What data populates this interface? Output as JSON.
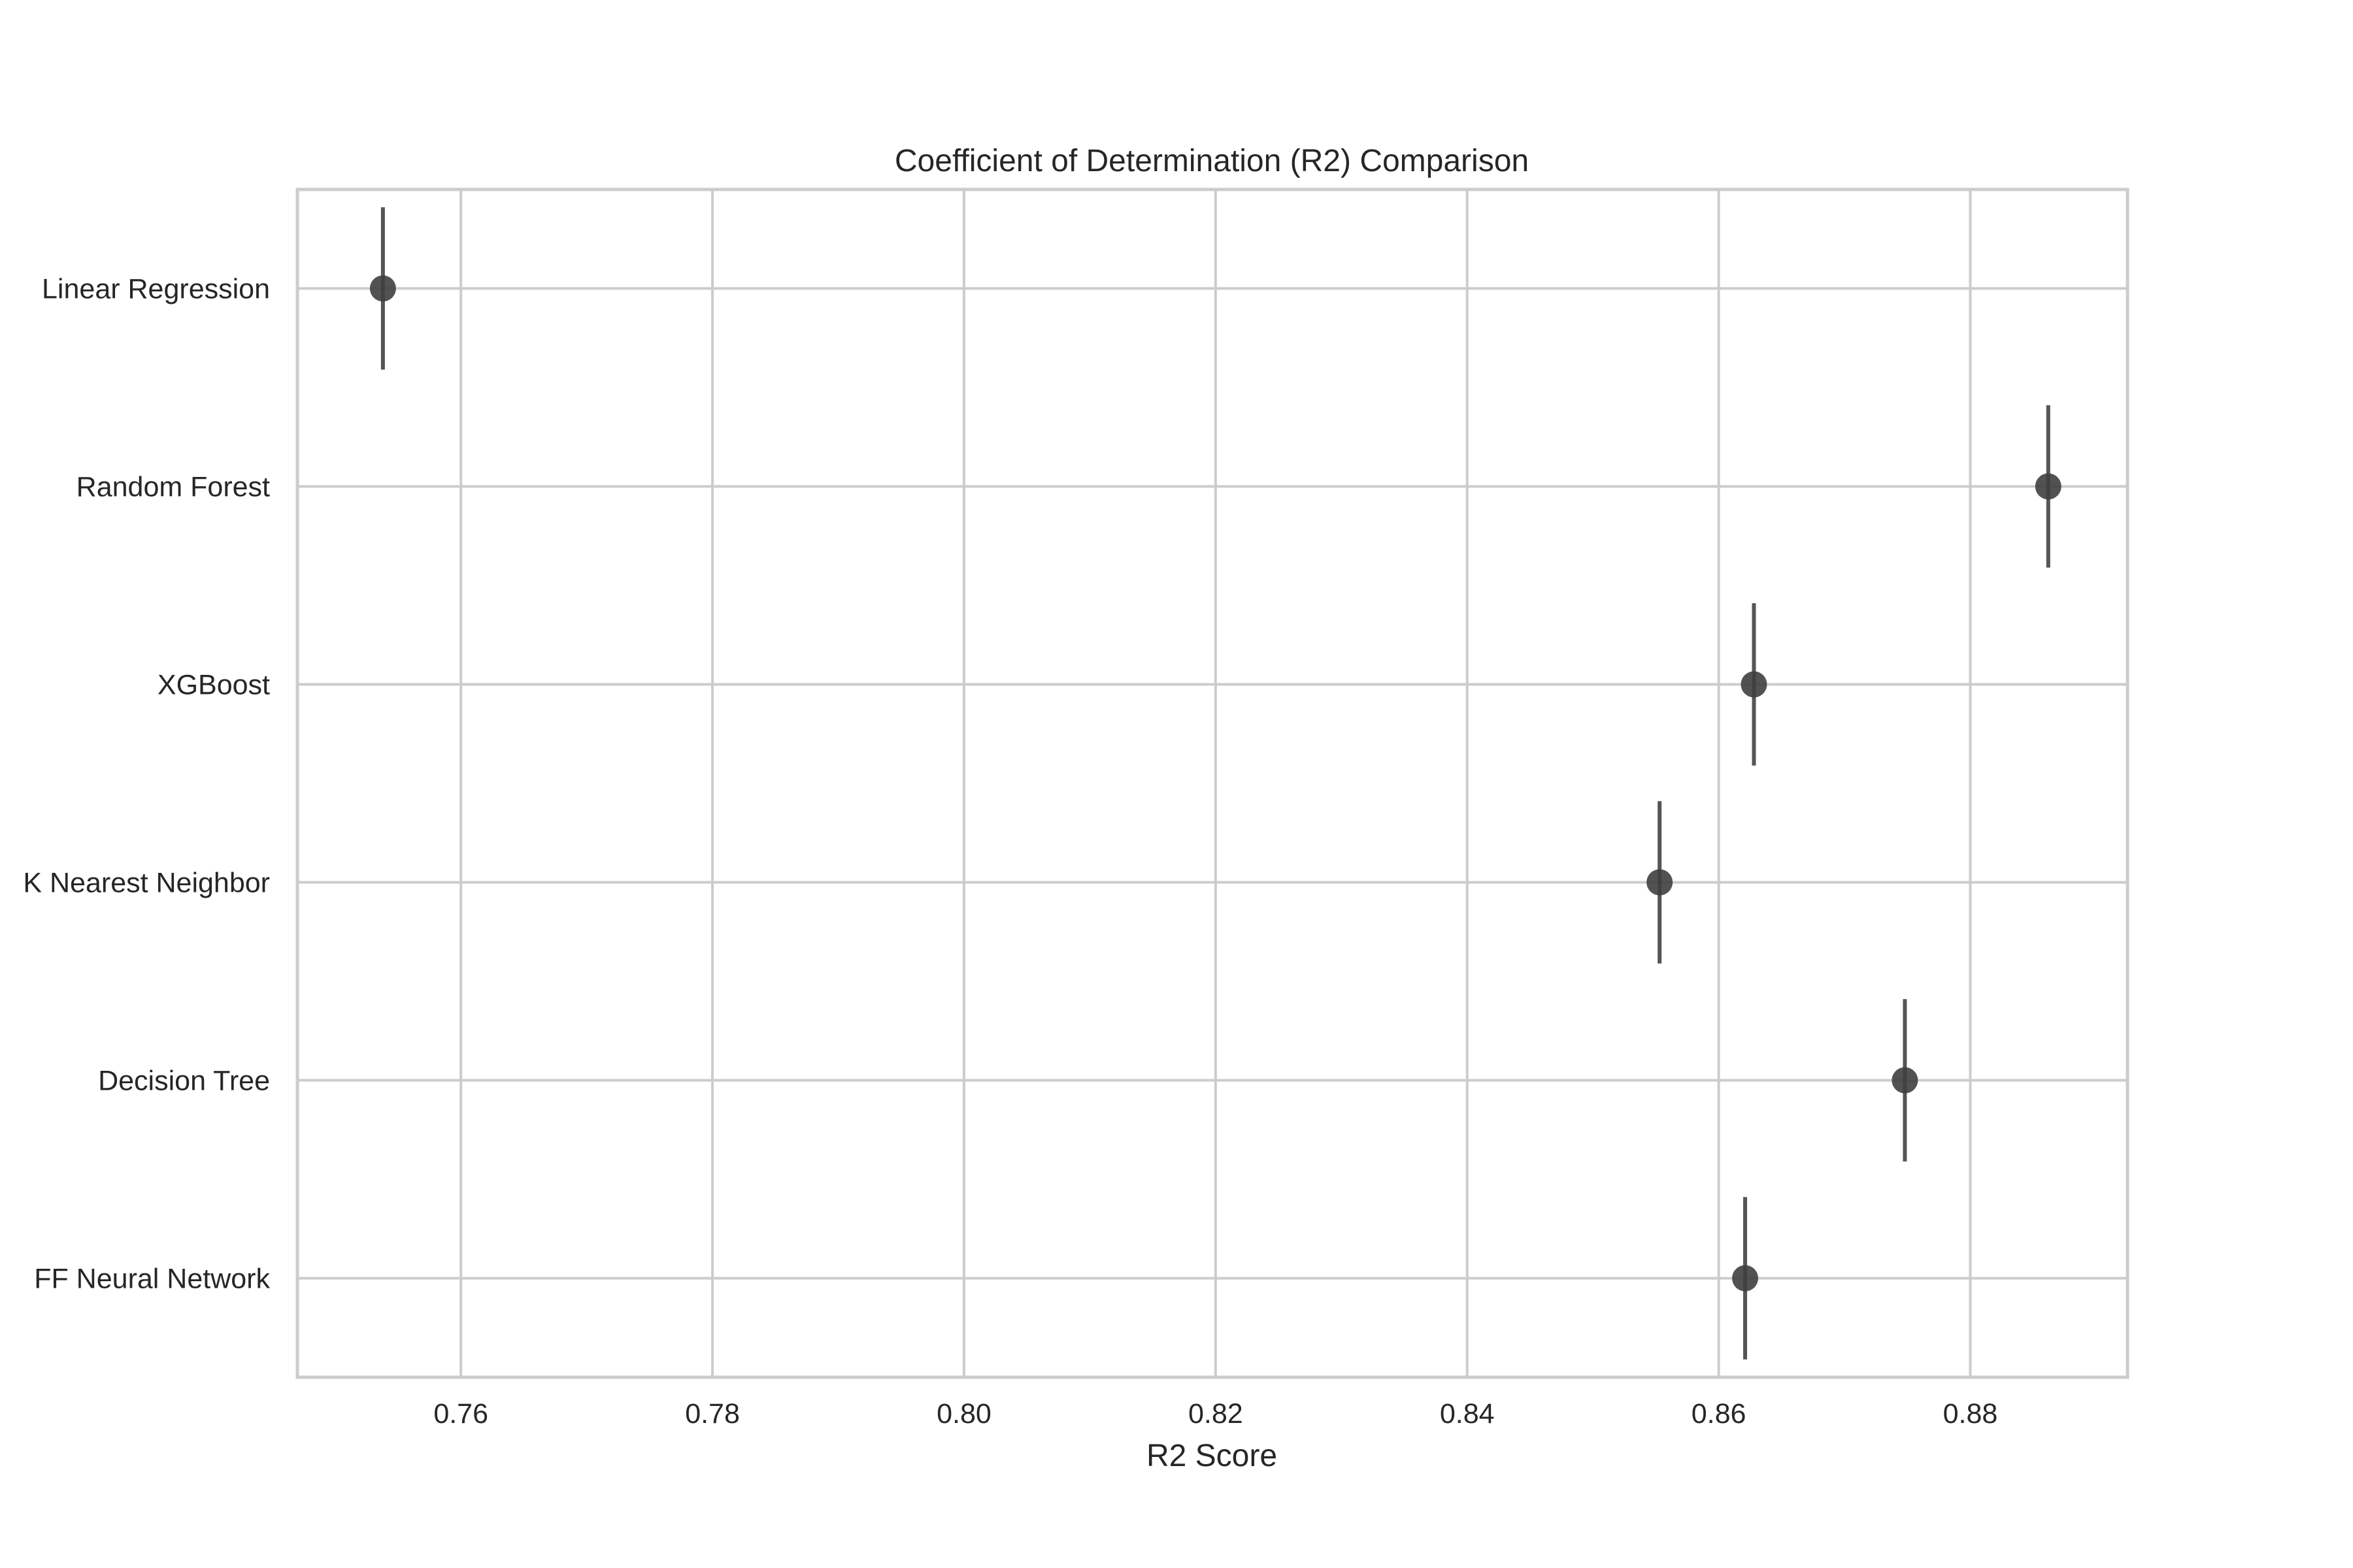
{
  "chart_data": {
    "type": "scatter",
    "title": "Coefficient of Determination (R2) Comparison",
    "xlabel": "R2 Score",
    "ylabel": "",
    "xlim": [
      0.747,
      0.8925
    ],
    "xticks": [
      0.76,
      0.78,
      0.8,
      0.82,
      0.84,
      0.86,
      0.88
    ],
    "xtick_labels": [
      "0.76",
      "0.78",
      "0.80",
      "0.82",
      "0.84",
      "0.86",
      "0.88"
    ],
    "grid": true,
    "legend": "none",
    "categories": [
      "Linear Regression",
      "Random Forest",
      "XGBoost",
      "K Nearest Neighbor",
      "Decision Tree",
      "FF Neural Network"
    ],
    "values": [
      0.7538,
      0.8862,
      0.8628,
      0.8553,
      0.8748,
      0.8621
    ],
    "point_color": "#3f3f3f",
    "grid_color": "#cccccc"
  }
}
